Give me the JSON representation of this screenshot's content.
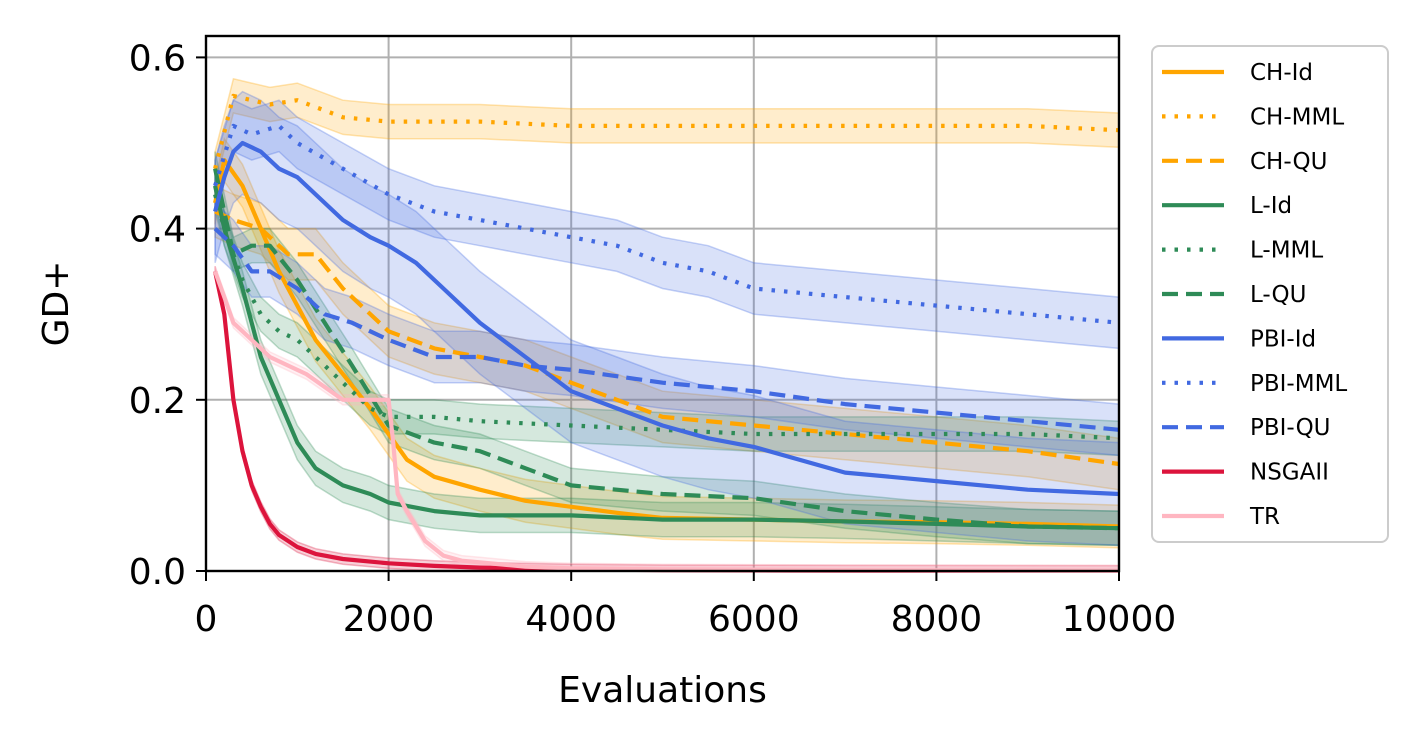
{
  "chart_data": {
    "type": "line",
    "title": "",
    "xlabel": "Evaluations",
    "ylabel": "GD+",
    "xlim": [
      0,
      10000
    ],
    "ylim": [
      0,
      0.625
    ],
    "xticks": [
      0,
      2000,
      4000,
      6000,
      8000,
      10000
    ],
    "yticks": [
      0.0,
      0.2,
      0.4,
      0.6
    ],
    "xtick_labels": [
      "0",
      "2000",
      "4000",
      "6000",
      "8000",
      "10000"
    ],
    "ytick_labels": [
      "0.0",
      "0.2",
      "0.4",
      "0.6"
    ],
    "grid": true,
    "legend_position": "outside right",
    "series": [
      {
        "name": "CH-Id",
        "color": "#ffa500",
        "dash": "solid",
        "band": 0.025,
        "x": [
          100,
          200,
          400,
          600,
          800,
          1000,
          1200,
          1500,
          1800,
          2000,
          2200,
          2500,
          3000,
          3500,
          4000,
          4500,
          5000,
          6000,
          7000,
          8000,
          9000,
          10000
        ],
        "y": [
          0.43,
          0.48,
          0.45,
          0.4,
          0.35,
          0.31,
          0.27,
          0.23,
          0.19,
          0.16,
          0.13,
          0.11,
          0.095,
          0.082,
          0.075,
          0.068,
          0.062,
          0.06,
          0.058,
          0.057,
          0.055,
          0.052
        ]
      },
      {
        "name": "CH-MML",
        "color": "#ffa500",
        "dash": "dot",
        "band": 0.02,
        "x": [
          100,
          300,
          500,
          700,
          1000,
          1500,
          2000,
          3000,
          4000,
          5000,
          6000,
          7000,
          8000,
          9000,
          10000
        ],
        "y": [
          0.47,
          0.555,
          0.55,
          0.545,
          0.55,
          0.53,
          0.525,
          0.525,
          0.52,
          0.52,
          0.52,
          0.52,
          0.52,
          0.52,
          0.515
        ]
      },
      {
        "name": "CH-QU",
        "color": "#ffa500",
        "dash": "dash",
        "band": 0.03,
        "x": [
          100,
          300,
          600,
          900,
          1200,
          1500,
          2000,
          2500,
          3000,
          3500,
          4000,
          4500,
          5000,
          6000,
          7000,
          8000,
          9000,
          10000
        ],
        "y": [
          0.42,
          0.41,
          0.4,
          0.37,
          0.37,
          0.33,
          0.28,
          0.26,
          0.25,
          0.24,
          0.22,
          0.2,
          0.18,
          0.17,
          0.16,
          0.15,
          0.14,
          0.125
        ]
      },
      {
        "name": "L-Id",
        "color": "#2e8b57",
        "dash": "solid",
        "band": 0.02,
        "x": [
          100,
          200,
          400,
          600,
          800,
          1000,
          1200,
          1500,
          1800,
          2000,
          2500,
          3000,
          4000,
          5000,
          6000,
          7000,
          8000,
          9000,
          10000
        ],
        "y": [
          0.45,
          0.4,
          0.33,
          0.25,
          0.2,
          0.15,
          0.12,
          0.1,
          0.09,
          0.08,
          0.07,
          0.065,
          0.065,
          0.06,
          0.06,
          0.058,
          0.055,
          0.052,
          0.05
        ]
      },
      {
        "name": "L-MML",
        "color": "#2e8b57",
        "dash": "dot",
        "band": 0.02,
        "x": [
          100,
          200,
          400,
          600,
          800,
          1000,
          1200,
          1500,
          1800,
          2000,
          2500,
          3000,
          4000,
          5000,
          6000,
          7000,
          8000,
          9000,
          10000
        ],
        "y": [
          0.44,
          0.4,
          0.34,
          0.3,
          0.28,
          0.27,
          0.25,
          0.22,
          0.19,
          0.18,
          0.18,
          0.175,
          0.17,
          0.165,
          0.16,
          0.16,
          0.16,
          0.16,
          0.155
        ]
      },
      {
        "name": "L-QU",
        "color": "#2e8b57",
        "dash": "dash",
        "band": 0.02,
        "x": [
          100,
          300,
          500,
          700,
          1000,
          1300,
          1600,
          2000,
          2500,
          3000,
          3500,
          4000,
          5000,
          6000,
          7000,
          8000,
          9000,
          10000
        ],
        "y": [
          0.47,
          0.37,
          0.38,
          0.38,
          0.34,
          0.29,
          0.24,
          0.17,
          0.15,
          0.14,
          0.12,
          0.1,
          0.09,
          0.085,
          0.07,
          0.06,
          0.052,
          0.05
        ]
      },
      {
        "name": "PBI-Id",
        "color": "#4169e1",
        "dash": "solid",
        "band": 0.06,
        "x": [
          100,
          200,
          300,
          400,
          600,
          800,
          1000,
          1200,
          1500,
          1800,
          2000,
          2300,
          2600,
          3000,
          3500,
          4000,
          4500,
          5000,
          5500,
          6000,
          7000,
          8000,
          9000,
          10000
        ],
        "y": [
          0.42,
          0.46,
          0.49,
          0.5,
          0.49,
          0.47,
          0.46,
          0.44,
          0.41,
          0.39,
          0.38,
          0.36,
          0.33,
          0.29,
          0.25,
          0.21,
          0.19,
          0.17,
          0.155,
          0.145,
          0.115,
          0.105,
          0.095,
          0.09
        ]
      },
      {
        "name": "PBI-MML",
        "color": "#4169e1",
        "dash": "dot",
        "band": 0.03,
        "x": [
          100,
          300,
          500,
          800,
          1000,
          1500,
          2000,
          2500,
          3000,
          3500,
          4000,
          4500,
          5000,
          5500,
          6000,
          7000,
          8000,
          9000,
          10000
        ],
        "y": [
          0.45,
          0.52,
          0.51,
          0.52,
          0.5,
          0.47,
          0.44,
          0.42,
          0.41,
          0.4,
          0.39,
          0.38,
          0.36,
          0.35,
          0.33,
          0.32,
          0.31,
          0.3,
          0.29
        ]
      },
      {
        "name": "PBI-QU",
        "color": "#4169e1",
        "dash": "dash",
        "band": 0.03,
        "x": [
          100,
          300,
          500,
          700,
          1000,
          1300,
          1600,
          2000,
          2500,
          3000,
          3500,
          4000,
          5000,
          6000,
          7000,
          8000,
          9000,
          10000
        ],
        "y": [
          0.4,
          0.38,
          0.35,
          0.35,
          0.33,
          0.3,
          0.29,
          0.27,
          0.25,
          0.25,
          0.24,
          0.235,
          0.22,
          0.21,
          0.195,
          0.185,
          0.175,
          0.165
        ]
      },
      {
        "name": "NSGAII",
        "color": "#dc143c",
        "dash": "solid",
        "band": 0.006,
        "x": [
          100,
          200,
          300,
          400,
          500,
          600,
          700,
          800,
          900,
          1000,
          1200,
          1500,
          2000,
          2500,
          3000,
          4000,
          5000,
          7000,
          10000
        ],
        "y": [
          0.35,
          0.3,
          0.2,
          0.14,
          0.1,
          0.075,
          0.055,
          0.042,
          0.035,
          0.028,
          0.02,
          0.014,
          0.009,
          0.006,
          0.004,
          0.002,
          0.001,
          0.0005,
          0.0003
        ]
      },
      {
        "name": "TR",
        "color": "#ffb6c1",
        "dash": "solid",
        "band": 0.006,
        "x": [
          100,
          200,
          300,
          500,
          700,
          900,
          1100,
          1300,
          1500,
          1700,
          1900,
          2000,
          2050,
          2100,
          2200,
          2400,
          2600,
          2800,
          3000,
          3500,
          4000,
          5000,
          7000,
          10000
        ],
        "y": [
          0.35,
          0.32,
          0.29,
          0.27,
          0.25,
          0.24,
          0.23,
          0.215,
          0.2,
          0.2,
          0.2,
          0.2,
          0.15,
          0.09,
          0.07,
          0.035,
          0.018,
          0.012,
          0.01,
          0.005,
          0.003,
          0.002,
          0.001,
          0.0005
        ]
      }
    ]
  }
}
